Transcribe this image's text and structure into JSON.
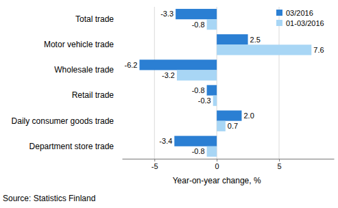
{
  "chart_data": {
    "type": "bar",
    "orientation": "horizontal",
    "categories": [
      "Total trade",
      "Motor vehicle trade",
      "Wholesale trade",
      "Retail trade",
      "Daily consumer goods trade",
      "Department store trade"
    ],
    "series": [
      {
        "name": "03/2016",
        "color": "#2b7fd3",
        "values": [
          -3.3,
          2.5,
          -6.2,
          -0.8,
          2.0,
          -3.4
        ],
        "value_labels": [
          "-3.3",
          "2.5",
          "-6.2",
          "-0.8",
          "2.0",
          "-3.4"
        ]
      },
      {
        "name": "01-03/2016",
        "color": "#a8d6f5",
        "values": [
          -0.8,
          7.6,
          -3.2,
          -0.3,
          0.7,
          -0.8
        ],
        "value_labels": [
          "-0.8",
          "7.6",
          "-3.2",
          "-0.3",
          "0.7",
          "-0.8"
        ]
      }
    ],
    "x_label": "Year-on-year change, %",
    "source": "Source: Statistics Finland",
    "xlim": [
      -7.6,
      9.4
    ],
    "xticks": [
      -5,
      0,
      5
    ],
    "grid": true,
    "legend": "upper right",
    "data_labels": true
  }
}
